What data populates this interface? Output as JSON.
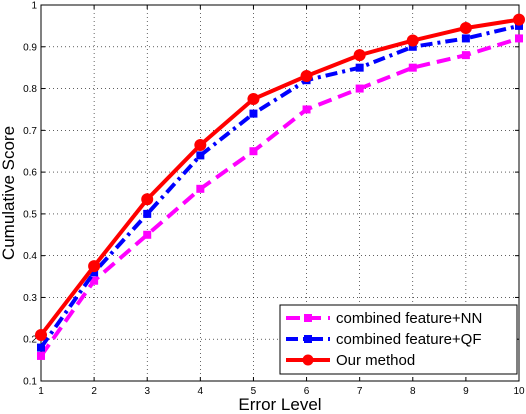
{
  "chart_data": {
    "type": "line",
    "xlabel": "Error Level",
    "ylabel": "Cumulative Score",
    "xlim": [
      1,
      10
    ],
    "ylim": [
      0.1,
      1
    ],
    "xticks": [
      "1",
      "2",
      "3",
      "4",
      "5",
      "6",
      "7",
      "8",
      "9",
      "10"
    ],
    "yticks": [
      "0.1",
      "0.2",
      "0.3",
      "0.4",
      "0.5",
      "0.6",
      "0.7",
      "0.8",
      "0.9",
      "1"
    ],
    "grid": true,
    "legend_position": "bottom-right",
    "x": [
      1,
      2,
      3,
      4,
      5,
      6,
      7,
      8,
      9,
      10
    ],
    "series": [
      {
        "name": "combined feature+NN",
        "color": "#ff00ff",
        "line_style": "dashed",
        "values": [
          0.16,
          0.34,
          0.45,
          0.56,
          0.65,
          0.75,
          0.8,
          0.85,
          0.88,
          0.92
        ]
      },
      {
        "name": "combined feature+QF",
        "color": "#0000ff",
        "line_style": "dash-dot",
        "values": [
          0.18,
          0.36,
          0.5,
          0.64,
          0.74,
          0.82,
          0.85,
          0.9,
          0.92,
          0.95
        ]
      },
      {
        "name": "Our method",
        "color": "#ff0000",
        "line_style": "solid",
        "values": [
          0.21,
          0.375,
          0.535,
          0.665,
          0.775,
          0.83,
          0.88,
          0.915,
          0.945,
          0.965
        ]
      }
    ]
  }
}
